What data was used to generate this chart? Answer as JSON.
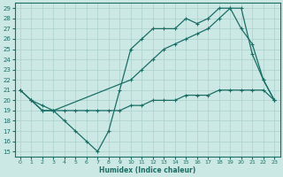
{
  "xlabel": "Humidex (Indice chaleur)",
  "bg_color": "#cce8e4",
  "grid_color": "#aad0cc",
  "line_color": "#1a6e66",
  "xlim": [
    -0.5,
    23.5
  ],
  "ylim": [
    14.5,
    29.5
  ],
  "xticks": [
    0,
    1,
    2,
    3,
    4,
    5,
    6,
    7,
    8,
    9,
    10,
    11,
    12,
    13,
    14,
    15,
    16,
    17,
    18,
    19,
    20,
    21,
    22,
    23
  ],
  "yticks": [
    15,
    16,
    17,
    18,
    19,
    20,
    21,
    22,
    23,
    24,
    25,
    26,
    27,
    28,
    29
  ],
  "line1_x": [
    0,
    1,
    2,
    3,
    4,
    5,
    6,
    7,
    8,
    9,
    10,
    11,
    12,
    13,
    14,
    15,
    16,
    17,
    18,
    19,
    20,
    21,
    22,
    23
  ],
  "line1_y": [
    21,
    20,
    19,
    19,
    18,
    17,
    16,
    15,
    17,
    21,
    25,
    26,
    27,
    27,
    27,
    28,
    27.5,
    28,
    29,
    29,
    29,
    24.5,
    22,
    20
  ],
  "line2_x": [
    1,
    2,
    3,
    10,
    11,
    12,
    13,
    14,
    15,
    16,
    17,
    18,
    19,
    20,
    21,
    22,
    23
  ],
  "line2_y": [
    20,
    19,
    19,
    22,
    23,
    24,
    25,
    25.5,
    26,
    26.5,
    27,
    28,
    29,
    27,
    25.5,
    22,
    20
  ],
  "line3_x": [
    0,
    1,
    2,
    3,
    4,
    5,
    6,
    7,
    8,
    9,
    10,
    11,
    12,
    13,
    14,
    15,
    16,
    17,
    18,
    19,
    20,
    21,
    22,
    23
  ],
  "line3_y": [
    21,
    20,
    19.5,
    19,
    19,
    19,
    19,
    19,
    19,
    19,
    19.5,
    19.5,
    20,
    20,
    20,
    20.5,
    20.5,
    20.5,
    21,
    21,
    21,
    21,
    21,
    20
  ]
}
